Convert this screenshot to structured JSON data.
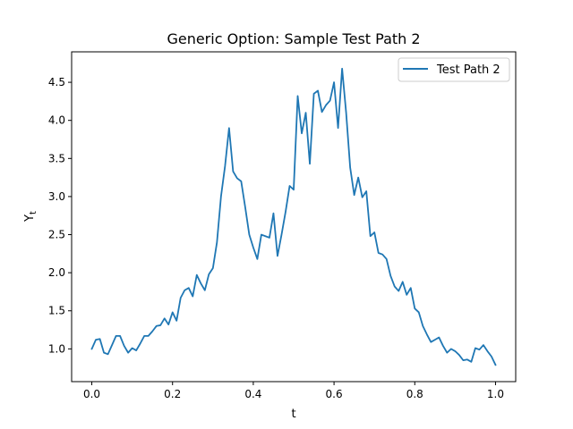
{
  "chart_data": {
    "type": "line",
    "title": "Generic Option: Sample Test Path 2",
    "xlabel": "t",
    "ylabel_main": "Y",
    "ylabel_sub": "t",
    "xlim": [
      -0.05,
      1.05
    ],
    "ylim": [
      0.57,
      4.9
    ],
    "xticks": [
      0.0,
      0.2,
      0.4,
      0.6,
      0.8,
      1.0
    ],
    "xtick_labels": [
      "0.0",
      "0.2",
      "0.4",
      "0.6",
      "0.8",
      "1.0"
    ],
    "yticks": [
      1.0,
      1.5,
      2.0,
      2.5,
      3.0,
      3.5,
      4.0,
      4.5
    ],
    "ytick_labels": [
      "1.0",
      "1.5",
      "2.0",
      "2.5",
      "3.0",
      "3.5",
      "4.0",
      "4.5"
    ],
    "grid": false,
    "legend": "top-right",
    "color": "#1f77b4",
    "series": [
      {
        "name": "Test Path 2",
        "x": [
          0.0,
          0.01,
          0.02,
          0.03,
          0.04,
          0.05,
          0.06,
          0.07,
          0.08,
          0.09,
          0.1,
          0.11,
          0.12,
          0.13,
          0.14,
          0.15,
          0.16,
          0.17,
          0.18,
          0.19,
          0.2,
          0.21,
          0.22,
          0.23,
          0.24,
          0.25,
          0.26,
          0.27,
          0.28,
          0.29,
          0.3,
          0.31,
          0.32,
          0.33,
          0.34,
          0.35,
          0.36,
          0.37,
          0.38,
          0.39,
          0.4,
          0.41,
          0.42,
          0.43,
          0.44,
          0.45,
          0.46,
          0.47,
          0.48,
          0.49,
          0.5,
          0.51,
          0.52,
          0.53,
          0.54,
          0.55,
          0.56,
          0.57,
          0.58,
          0.59,
          0.6,
          0.61,
          0.62,
          0.63,
          0.64,
          0.65,
          0.66,
          0.67,
          0.68,
          0.69,
          0.7,
          0.71,
          0.72,
          0.73,
          0.74,
          0.75,
          0.76,
          0.77,
          0.78,
          0.79,
          0.8,
          0.81,
          0.82,
          0.83,
          0.84,
          0.85,
          0.86,
          0.87,
          0.88,
          0.89,
          0.9,
          0.91,
          0.92,
          0.93,
          0.94,
          0.95,
          0.96,
          0.97,
          0.98,
          0.99,
          1.0
        ],
        "values": [
          1.0,
          1.12,
          1.13,
          0.95,
          0.93,
          1.05,
          1.17,
          1.17,
          1.04,
          0.95,
          1.01,
          0.98,
          1.07,
          1.17,
          1.17,
          1.23,
          1.3,
          1.31,
          1.4,
          1.32,
          1.48,
          1.37,
          1.67,
          1.77,
          1.8,
          1.69,
          1.97,
          1.86,
          1.77,
          1.98,
          2.06,
          2.4,
          3.0,
          3.4,
          3.9,
          3.33,
          3.24,
          3.2,
          2.86,
          2.5,
          2.33,
          2.18,
          2.5,
          2.48,
          2.46,
          2.78,
          2.22,
          2.5,
          2.8,
          3.14,
          3.09,
          4.32,
          3.83,
          4.1,
          3.43,
          4.35,
          4.39,
          4.11,
          4.2,
          4.26,
          4.5,
          3.9,
          4.68,
          4.1,
          3.38,
          3.02,
          3.25,
          2.99,
          3.07,
          2.48,
          2.53,
          2.26,
          2.24,
          2.18,
          1.96,
          1.82,
          1.76,
          1.88,
          1.71,
          1.8,
          1.53,
          1.48,
          1.3,
          1.19,
          1.09,
          1.12,
          1.15,
          1.04,
          0.95,
          1.0,
          0.97,
          0.92,
          0.85,
          0.86,
          0.83,
          1.01,
          0.99,
          1.05,
          0.97,
          0.9,
          0.79
        ]
      }
    ]
  }
}
